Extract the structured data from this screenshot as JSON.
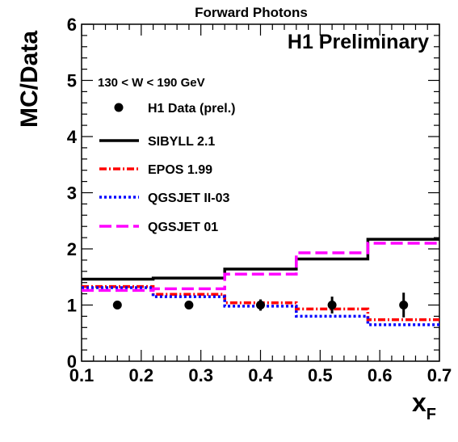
{
  "chart_data": {
    "type": "line",
    "title": "Forward Photons",
    "label_prelim": "H1 Preliminary",
    "cut_text": "130 < W < 190 GeV",
    "xlabel": "x",
    "xlabel_sub": "F",
    "ylabel": "MC/Data",
    "xlim": [
      0.1,
      0.7
    ],
    "ylim": [
      0,
      6
    ],
    "x_ticks": [
      "0.1",
      "0.2",
      "0.3",
      "0.4",
      "0.5",
      "0.6",
      "0.7"
    ],
    "y_ticks": [
      "0",
      "1",
      "2",
      "3",
      "4",
      "5",
      "6"
    ],
    "bin_edges": [
      0.1,
      0.22,
      0.34,
      0.46,
      0.58,
      0.7
    ],
    "data": {
      "name": "H1 Data (prel.)",
      "x": [
        0.16,
        0.28,
        0.4,
        0.52,
        0.64
      ],
      "y": [
        1.0,
        1.0,
        1.0,
        1.0,
        1.0
      ],
      "err": [
        0.03,
        0.05,
        0.1,
        0.15,
        0.22
      ]
    },
    "series": [
      {
        "name": "SIBYLL 2.1",
        "color": "#000000",
        "style": "solid",
        "values": [
          1.46,
          1.48,
          1.64,
          1.82,
          2.17
        ]
      },
      {
        "name": "EPOS 1.99",
        "color": "#ff0000",
        "style": "dashdot",
        "values": [
          1.33,
          1.19,
          1.04,
          0.93,
          0.74
        ]
      },
      {
        "name": "QGSJET II-03",
        "color": "#0000ff",
        "style": "dotted",
        "values": [
          1.31,
          1.15,
          0.98,
          0.8,
          0.65
        ]
      },
      {
        "name": "QGSJET 01",
        "color": "#ff00ff",
        "style": "dashed",
        "values": [
          1.26,
          1.29,
          1.55,
          1.93,
          2.1
        ]
      }
    ],
    "legend_position": "top-left",
    "grid": false
  }
}
